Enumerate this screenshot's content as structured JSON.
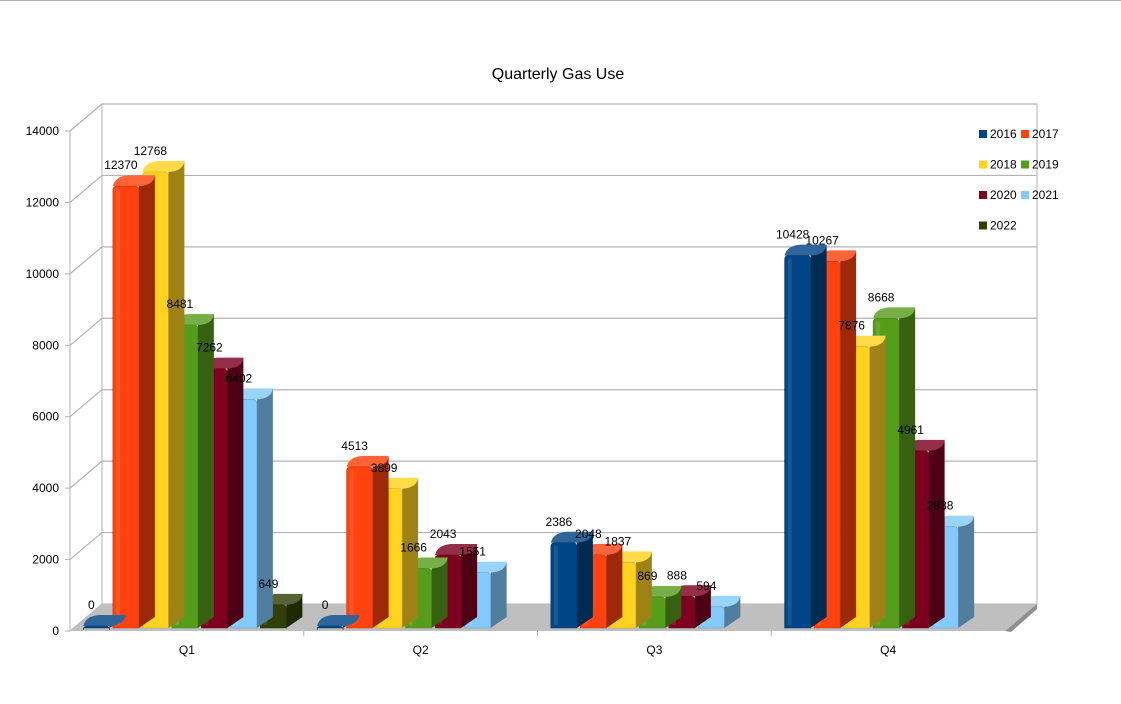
{
  "chart_data": {
    "type": "bar",
    "title": "Quarterly Gas Use",
    "xlabel": "",
    "ylabel": "",
    "categories": [
      "Q1",
      "Q2",
      "Q3",
      "Q4"
    ],
    "ylim": [
      0,
      14000
    ],
    "yticks": [
      0,
      2000,
      4000,
      6000,
      8000,
      10000,
      12000,
      14000
    ],
    "grid": true,
    "legend_position": "top-right",
    "series": [
      {
        "name": "2016",
        "color": "#004586",
        "values": [
          0,
          0,
          2386,
          10428
        ],
        "labels": [
          "0",
          "0",
          "2386",
          "10428"
        ]
      },
      {
        "name": "2017",
        "color": "#ff420e",
        "values": [
          12370,
          4513,
          2048,
          10267
        ],
        "labels": [
          "12370",
          "4513",
          "2048",
          "10267"
        ]
      },
      {
        "name": "2018",
        "color": "#ffd320",
        "values": [
          12768,
          3899,
          1837,
          7876
        ],
        "labels": [
          "12768",
          "3899",
          "1837",
          "7876"
        ]
      },
      {
        "name": "2019",
        "color": "#579d1c",
        "values": [
          8481,
          1666,
          869,
          8668
        ],
        "labels": [
          "8481",
          "1666",
          "869",
          "8668"
        ]
      },
      {
        "name": "2020",
        "color": "#7e0021",
        "values": [
          7262,
          2043,
          888,
          4961
        ],
        "labels": [
          "7262",
          "2043",
          "888",
          "4961"
        ]
      },
      {
        "name": "2021",
        "color": "#83caff",
        "values": [
          6402,
          1551,
          594,
          2838
        ],
        "labels": [
          "6402",
          "1551",
          "594",
          "2838"
        ]
      },
      {
        "name": "2022",
        "color": "#314004",
        "values": [
          649,
          null,
          null,
          null
        ],
        "labels": [
          "649",
          null,
          null,
          null
        ]
      }
    ]
  }
}
